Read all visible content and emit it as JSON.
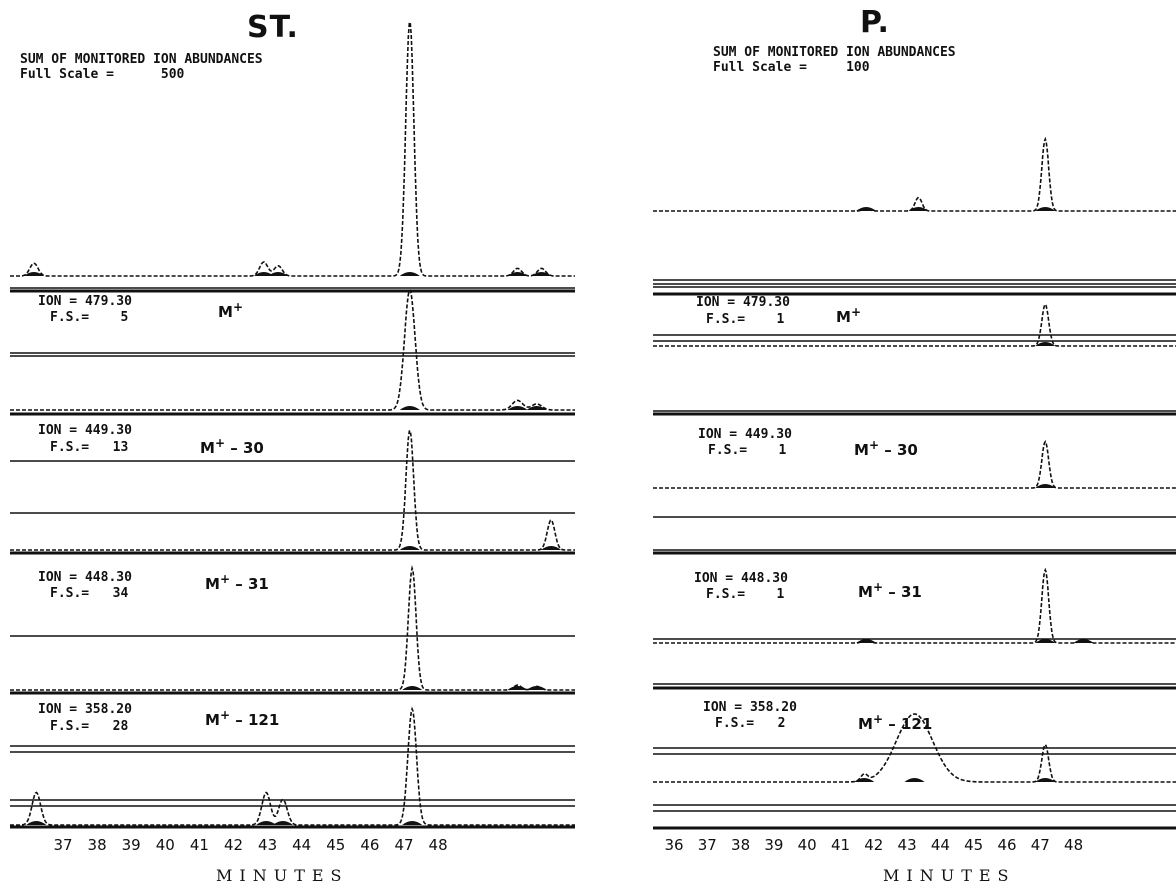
{
  "chart_data": [
    {
      "type": "line",
      "title": "ST.",
      "header_line1": "SUM OF MONITORED ION ABUNDANCES",
      "header_line2": "Full Scale =",
      "full_scale": "500",
      "xlabel": "MINUTES",
      "x_ticks": [
        "37",
        "38",
        "39",
        "40",
        "41",
        "42",
        "43",
        "44",
        "45",
        "46",
        "47",
        "48"
      ],
      "xlim": [
        37,
        48.8
      ],
      "traces": [
        {
          "ion": "SUM",
          "peaks": [
            {
              "x": 37.5,
              "h": 0.05
            },
            {
              "x": 42.3,
              "h": 0.055
            },
            {
              "x": 42.6,
              "h": 0.04
            },
            {
              "x": 45.35,
              "h": 1.0
            },
            {
              "x": 47.6,
              "h": 0.03
            },
            {
              "x": 48.1,
              "h": 0.03
            }
          ]
        },
        {
          "ion_label": "ION = 479.30",
          "fs_label": "F.S.=",
          "fs_value": "5",
          "fragment": "M",
          "fragment_sup": "+",
          "fragment_suffix": "",
          "peaks": [
            {
              "x": 45.35,
              "h": 1.0
            },
            {
              "x": 47.6,
              "h": 0.08
            },
            {
              "x": 48.0,
              "h": 0.05
            }
          ]
        },
        {
          "ion_label": "ION = 449.30",
          "fs_label": "F.S.=",
          "fs_value": "13",
          "fragment": "M",
          "fragment_sup": "+",
          "fragment_suffix": " – 30",
          "peaks": [
            {
              "x": 45.35,
              "h": 1.0
            },
            {
              "x": 48.3,
              "h": 0.25
            }
          ]
        },
        {
          "ion_label": "ION = 448.30",
          "fs_label": "F.S.=",
          "fs_value": "34",
          "fragment": "M",
          "fragment_sup": "+",
          "fragment_suffix": " – 31",
          "peaks": [
            {
              "x": 45.4,
              "h": 1.0
            },
            {
              "x": 47.6,
              "h": 0.04
            },
            {
              "x": 48.0,
              "h": 0.03
            }
          ]
        },
        {
          "ion_label": "ION = 358.20",
          "fs_label": "F.S.=",
          "fs_value": "28",
          "fragment": "M",
          "fragment_sup": "+",
          "fragment_suffix": " – 121",
          "peaks": [
            {
              "x": 37.55,
              "h": 0.28
            },
            {
              "x": 42.35,
              "h": 0.28
            },
            {
              "x": 42.7,
              "h": 0.22
            },
            {
              "x": 45.4,
              "h": 1.0
            }
          ]
        }
      ]
    },
    {
      "type": "line",
      "title": "P.",
      "header_line1": "SUM OF MONITORED ION ABUNDANCES",
      "header_line2": "Full Scale =",
      "full_scale": "100",
      "xlabel": "MINUTES",
      "x_ticks": [
        "36",
        "37",
        "38",
        "39",
        "40",
        "41",
        "42",
        "43",
        "44",
        "45",
        "46",
        "47",
        "48"
      ],
      "xlim": [
        35.8,
        48.8
      ],
      "traces": [
        {
          "ion": "SUM",
          "peaks": [
            {
              "x": 41.1,
              "h": 0.03
            },
            {
              "x": 42.4,
              "h": 0.15
            },
            {
              "x": 45.55,
              "h": 0.8
            }
          ]
        },
        {
          "ion_label": "ION = 479.30",
          "fs_label": "F.S.=",
          "fs_value": "1",
          "fragment": "M",
          "fragment_sup": "+",
          "fragment_suffix": "",
          "peaks": [
            {
              "x": 45.55,
              "h": 0.8
            }
          ]
        },
        {
          "ion_label": "ION = 449.30",
          "fs_label": "F.S.=",
          "fs_value": "1",
          "fragment": "M",
          "fragment_sup": "+",
          "fragment_suffix": " – 30",
          "peaks": [
            {
              "x": 45.55,
              "h": 0.8
            }
          ]
        },
        {
          "ion_label": "ION = 448.30",
          "fs_label": "F.S.=",
          "fs_value": "1",
          "fragment": "M",
          "fragment_sup": "+",
          "fragment_suffix": " – 31",
          "peaks": [
            {
              "x": 41.1,
              "h": 0.05
            },
            {
              "x": 45.55,
              "h": 0.95
            },
            {
              "x": 46.5,
              "h": 0.05
            }
          ]
        },
        {
          "ion_label": "ION = 358.20",
          "fs_label": "F.S.=",
          "fs_value": "2",
          "fragment": "M",
          "fragment_sup": "+",
          "fragment_suffix": " – 121",
          "peaks": [
            {
              "x": 41.05,
              "h": 0.1
            },
            {
              "x": 42.3,
              "h": 1.0
            },
            {
              "x": 45.55,
              "h": 0.55
            }
          ]
        }
      ]
    }
  ]
}
